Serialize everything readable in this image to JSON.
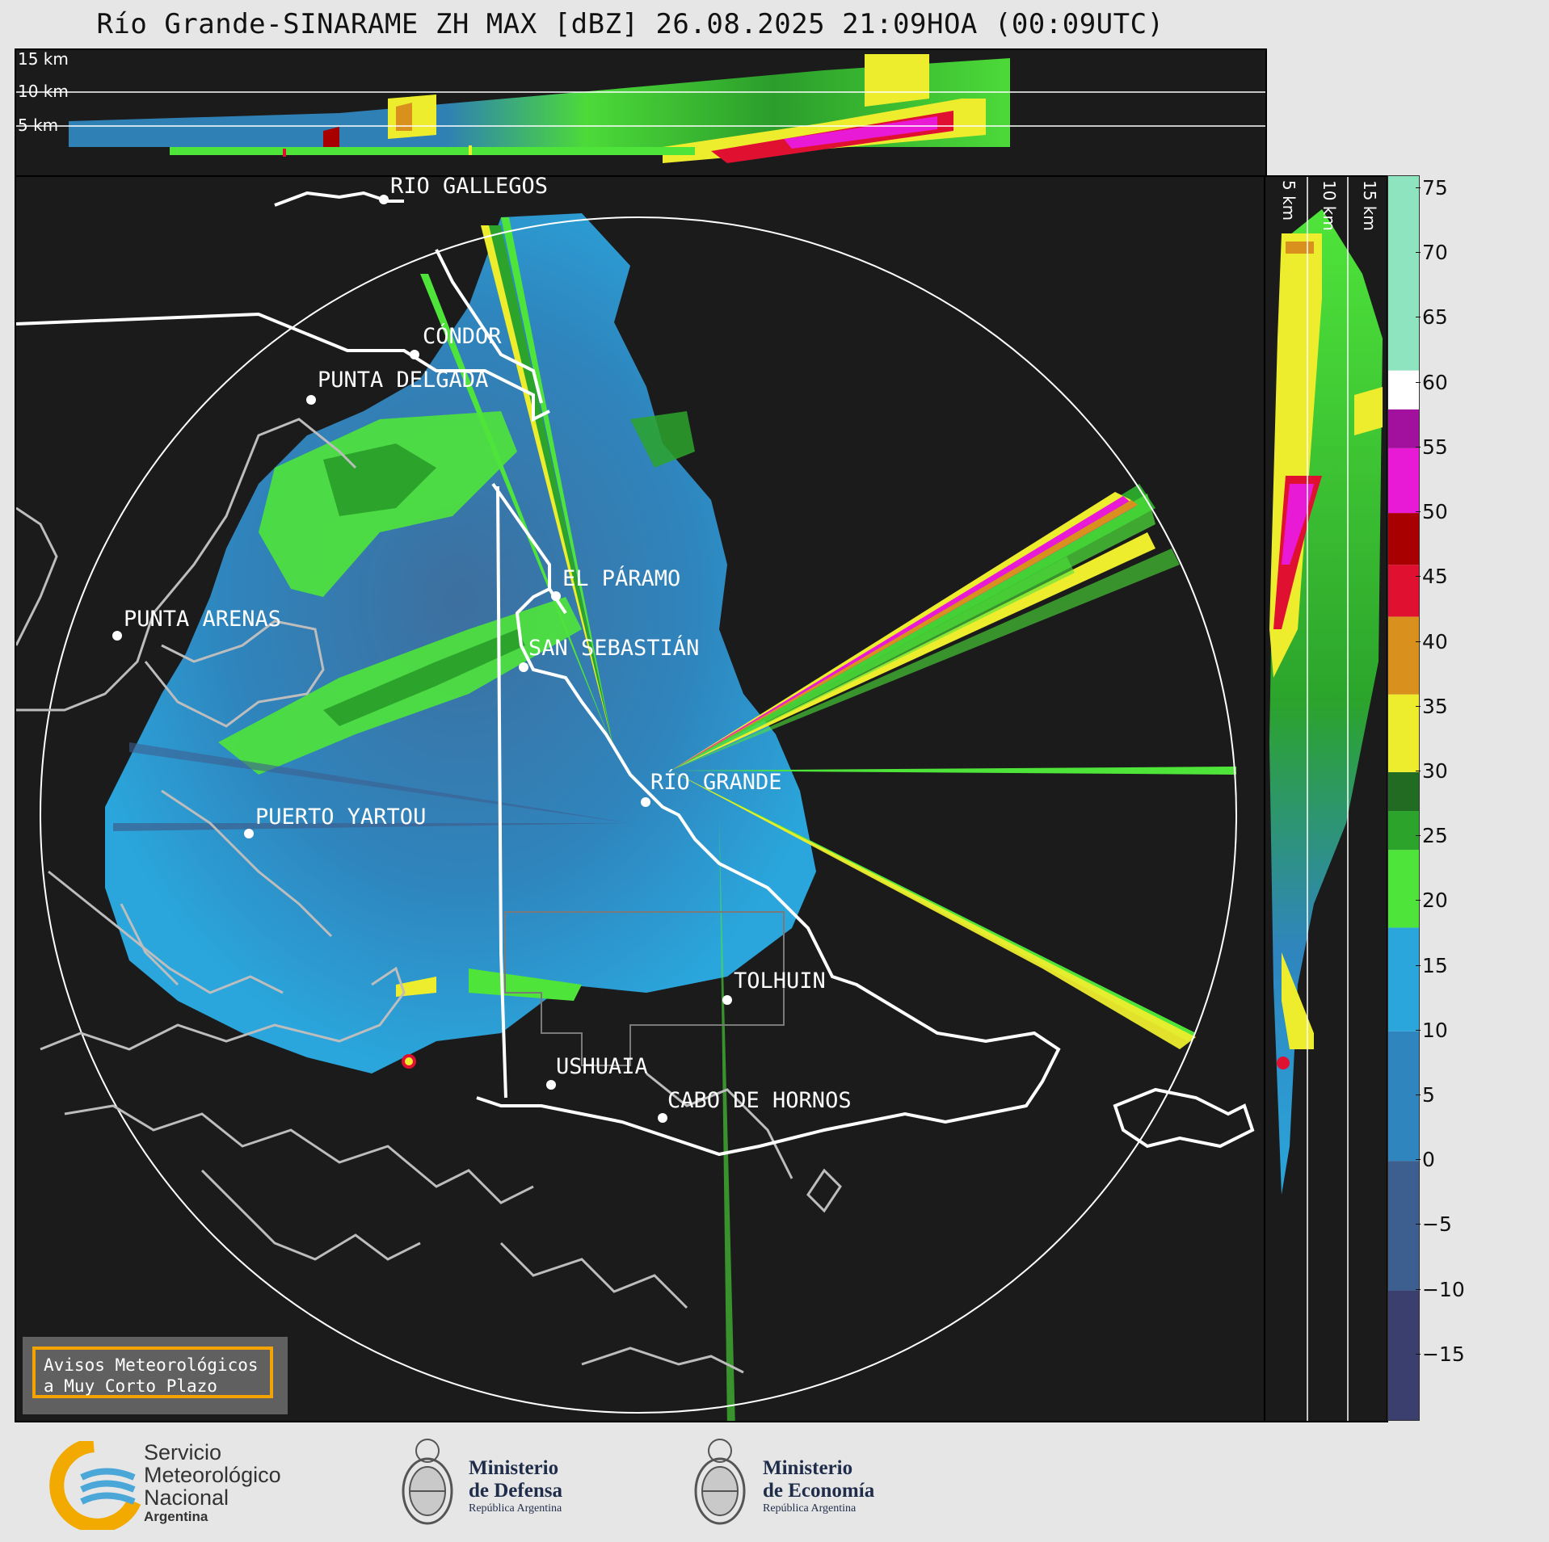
{
  "title": "Río Grande-SINARAME ZH MAX [dBZ] 26.08.2025 21:09HOA (00:09UTC)",
  "top_panel": {
    "height_labels": [
      "15 km",
      "10 km",
      "5 km"
    ]
  },
  "right_panel": {
    "height_labels": [
      "5 km",
      "10 km",
      "15 km"
    ]
  },
  "cities": [
    {
      "name": "RÍO GALLEGOS"
    },
    {
      "name": "CÓNDOR"
    },
    {
      "name": "PUNTA DELGADA"
    },
    {
      "name": "EL PÁRAMO"
    },
    {
      "name": "PUNTA ARENAS"
    },
    {
      "name": "SAN SEBASTIÁN"
    },
    {
      "name": "RÍO GRANDE"
    },
    {
      "name": "PUERTO YARTOU"
    },
    {
      "name": "TOLHUIN"
    },
    {
      "name": "USHUAIA"
    },
    {
      "name": "CABO DE HORNOS"
    }
  ],
  "colorbar": {
    "unit": "dBZ",
    "ticks": [
      "75",
      "70",
      "65",
      "60",
      "55",
      "50",
      "45",
      "40",
      "35",
      "30",
      "25",
      "20",
      "15",
      "10",
      "5",
      "0",
      "−5",
      "−10",
      "−15"
    ],
    "min": -20,
    "max": 76,
    "colors": {
      "very_low": "#3a3f6e",
      "low": "#3d5f8f",
      "blue": "#2f85bd",
      "cyan": "#2aa6dc",
      "light_green": "#4fe43a",
      "green": "#2ca42c",
      "dark_green": "#226b22",
      "yellow": "#eded2e",
      "orange": "#d9901c",
      "red": "#e01030",
      "dark_red": "#a80000",
      "magenta": "#e81ad6",
      "purple": "#a2109e",
      "white": "#ffffff",
      "mint": "#8fe4c0"
    }
  },
  "warning": {
    "line1": "Avisos Meteorológicos",
    "line2": "a Muy Corto Plazo"
  },
  "logos": {
    "smn": {
      "line1": "Servicio",
      "line2": "Meteorológico",
      "line3": "Nacional",
      "line4": "Argentina",
      "icon": "smn-logo-icon"
    },
    "defensa": {
      "line1": "Ministerio",
      "line2": "de Defensa",
      "sub": "República Argentina",
      "icon": "coat-of-arms-icon"
    },
    "economia": {
      "line1": "Ministerio",
      "line2": "de Economía",
      "sub": "República Argentina",
      "icon": "coat-of-arms-icon"
    }
  }
}
